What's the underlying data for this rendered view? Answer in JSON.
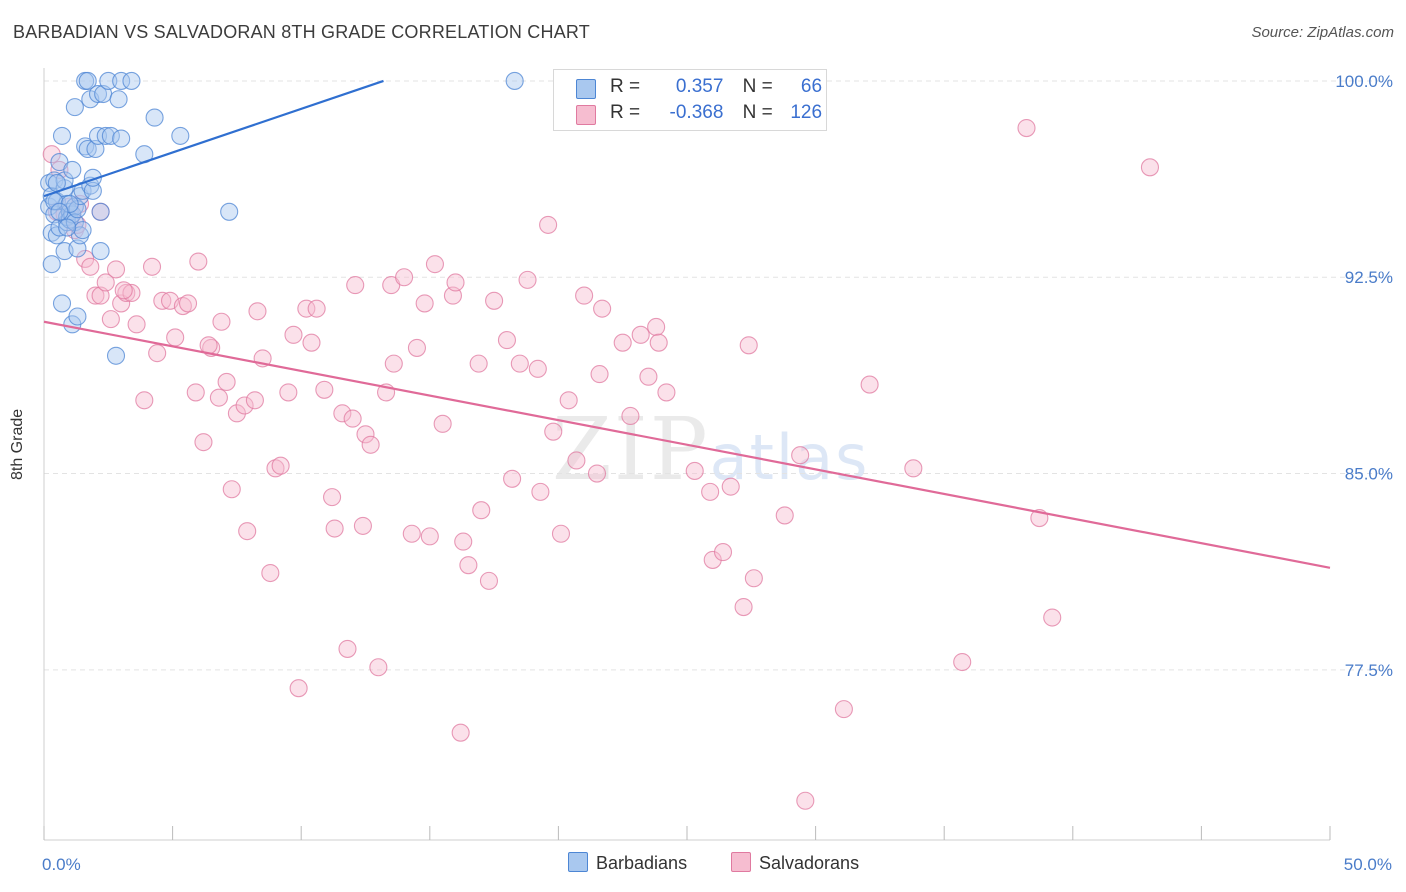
{
  "title": "BARBADIAN VS SALVADORAN 8TH GRADE CORRELATION CHART",
  "source": "Source: ZipAtlas.com",
  "watermark": {
    "zip": "ZIP",
    "atlas": "atlas"
  },
  "legend_top": {
    "rows": [
      {
        "r_label": "R =",
        "r_value": "0.357",
        "n_label": "N =",
        "n_value": "66"
      },
      {
        "r_label": "R =",
        "r_value": "-0.368",
        "n_label": "N =",
        "n_value": "126"
      }
    ]
  },
  "legend_bottom": [
    "Barbadians",
    "Salvadorans"
  ],
  "colors": {
    "blue_fill": "#a9c8ef",
    "blue_stroke": "#4d86d4",
    "blue_line": "#2f6fd0",
    "pink_fill": "#f6bdd0",
    "pink_stroke": "#e07aa0",
    "pink_line": "#e06a98",
    "tick_text": "#4a7cc9",
    "grid": "#e3e3e3"
  },
  "chart_data": {
    "type": "scatter",
    "title": "BARBADIAN VS SALVADORAN 8TH GRADE CORRELATION CHART",
    "xlabel": "",
    "ylabel": "8th Grade",
    "xlim": [
      0,
      50
    ],
    "ylim": [
      71.0,
      100.8
    ],
    "y_ticks": [
      {
        "value": 100.0,
        "label": "100.0%"
      },
      {
        "value": 92.5,
        "label": "92.5%"
      },
      {
        "value": 85.0,
        "label": "85.0%"
      },
      {
        "value": 77.5,
        "label": "77.5%"
      }
    ],
    "x_tick_labels": [
      {
        "value": 0,
        "label": "0.0%"
      },
      {
        "value": 50,
        "label": "50.0%"
      }
    ],
    "grid": "horizontal dashed",
    "legend_position": "top-center",
    "series": [
      {
        "name": "Barbadians",
        "R": 0.357,
        "N": 66,
        "trend": {
          "x1": 0.0,
          "y1": 95.6,
          "x2": 13.2,
          "y2": 100.0
        },
        "points": [
          [
            0.2,
            96.1
          ],
          [
            0.2,
            95.2
          ],
          [
            0.3,
            94.2
          ],
          [
            0.3,
            93.0
          ],
          [
            0.3,
            95.6
          ],
          [
            0.4,
            96.2
          ],
          [
            0.4,
            94.9
          ],
          [
            0.5,
            95.4
          ],
          [
            0.5,
            94.1
          ],
          [
            0.6,
            96.9
          ],
          [
            0.6,
            94.4
          ],
          [
            0.7,
            97.9
          ],
          [
            0.7,
            91.5
          ],
          [
            0.8,
            95.9
          ],
          [
            0.8,
            96.2
          ],
          [
            0.8,
            93.5
          ],
          [
            0.9,
            95.3
          ],
          [
            0.9,
            94.6
          ],
          [
            0.9,
            94.8
          ],
          [
            1.0,
            95.0
          ],
          [
            1.0,
            94.7
          ],
          [
            1.1,
            96.6
          ],
          [
            1.1,
            94.9
          ],
          [
            1.2,
            95.2
          ],
          [
            1.2,
            94.6
          ],
          [
            1.3,
            95.1
          ],
          [
            1.2,
            99.0
          ],
          [
            1.1,
            90.7
          ],
          [
            1.3,
            91.0
          ],
          [
            1.3,
            93.6
          ],
          [
            1.4,
            95.6
          ],
          [
            1.4,
            94.1
          ],
          [
            1.5,
            95.8
          ],
          [
            1.6,
            97.5
          ],
          [
            1.6,
            100.0
          ],
          [
            1.7,
            97.4
          ],
          [
            1.7,
            100.0
          ],
          [
            1.8,
            99.3
          ],
          [
            1.8,
            96.0
          ],
          [
            1.9,
            95.8
          ],
          [
            2.0,
            97.4
          ],
          [
            2.1,
            97.9
          ],
          [
            2.1,
            99.5
          ],
          [
            2.2,
            93.5
          ],
          [
            2.2,
            95.0
          ],
          [
            2.3,
            99.5
          ],
          [
            2.4,
            97.9
          ],
          [
            2.5,
            100.0
          ],
          [
            2.6,
            97.9
          ],
          [
            2.8,
            89.5
          ],
          [
            2.9,
            99.3
          ],
          [
            3.0,
            97.8
          ],
          [
            3.0,
            100.0
          ],
          [
            3.4,
            100.0
          ],
          [
            3.9,
            97.2
          ],
          [
            4.3,
            98.6
          ],
          [
            5.3,
            97.9
          ],
          [
            7.2,
            95.0
          ],
          [
            18.3,
            100.0
          ],
          [
            0.4,
            95.4
          ],
          [
            0.5,
            96.1
          ],
          [
            1.0,
            95.3
          ],
          [
            1.5,
            94.3
          ],
          [
            0.6,
            95.0
          ],
          [
            1.9,
            96.3
          ],
          [
            0.9,
            94.4
          ]
        ]
      },
      {
        "name": "Salvadorans",
        "R": -0.368,
        "N": 126,
        "trend": {
          "x1": 0.0,
          "y1": 90.8,
          "x2": 50.0,
          "y2": 81.4
        },
        "points": [
          [
            0.3,
            97.2
          ],
          [
            0.5,
            95.0
          ],
          [
            0.6,
            96.6
          ],
          [
            0.8,
            94.9
          ],
          [
            1.0,
            95.2
          ],
          [
            1.2,
            94.3
          ],
          [
            1.3,
            94.5
          ],
          [
            1.4,
            95.3
          ],
          [
            1.6,
            93.2
          ],
          [
            1.8,
            92.9
          ],
          [
            2.0,
            91.8
          ],
          [
            2.2,
            91.8
          ],
          [
            2.4,
            92.3
          ],
          [
            2.6,
            90.9
          ],
          [
            2.8,
            92.8
          ],
          [
            3.0,
            91.5
          ],
          [
            3.2,
            91.9
          ],
          [
            3.4,
            91.9
          ],
          [
            3.6,
            90.7
          ],
          [
            3.9,
            87.8
          ],
          [
            4.2,
            92.9
          ],
          [
            4.4,
            89.6
          ],
          [
            4.6,
            91.6
          ],
          [
            4.9,
            91.6
          ],
          [
            5.1,
            90.2
          ],
          [
            5.4,
            91.4
          ],
          [
            5.6,
            91.5
          ],
          [
            5.9,
            88.1
          ],
          [
            6.0,
            93.1
          ],
          [
            6.2,
            86.2
          ],
          [
            6.5,
            89.8
          ],
          [
            6.8,
            87.9
          ],
          [
            6.9,
            90.8
          ],
          [
            7.1,
            88.5
          ],
          [
            7.3,
            84.4
          ],
          [
            7.5,
            87.3
          ],
          [
            7.8,
            87.6
          ],
          [
            7.9,
            82.8
          ],
          [
            8.2,
            87.8
          ],
          [
            8.3,
            91.2
          ],
          [
            8.5,
            89.4
          ],
          [
            8.8,
            81.2
          ],
          [
            9.0,
            85.2
          ],
          [
            9.2,
            85.3
          ],
          [
            9.5,
            88.1
          ],
          [
            9.7,
            90.3
          ],
          [
            9.9,
            76.8
          ],
          [
            10.2,
            91.3
          ],
          [
            10.4,
            90.0
          ],
          [
            10.6,
            91.3
          ],
          [
            10.9,
            88.2
          ],
          [
            11.2,
            84.1
          ],
          [
            11.3,
            82.9
          ],
          [
            11.6,
            87.3
          ],
          [
            11.8,
            78.3
          ],
          [
            12.0,
            87.1
          ],
          [
            12.1,
            92.2
          ],
          [
            12.4,
            83.0
          ],
          [
            12.5,
            86.5
          ],
          [
            12.7,
            86.1
          ],
          [
            13.0,
            77.6
          ],
          [
            13.3,
            88.1
          ],
          [
            13.5,
            92.2
          ],
          [
            13.6,
            89.2
          ],
          [
            14.0,
            92.5
          ],
          [
            14.3,
            82.7
          ],
          [
            14.5,
            89.8
          ],
          [
            14.8,
            91.5
          ],
          [
            15.0,
            82.6
          ],
          [
            15.2,
            93.0
          ],
          [
            15.5,
            86.9
          ],
          [
            15.9,
            91.8
          ],
          [
            16.2,
            75.1
          ],
          [
            16.3,
            82.4
          ],
          [
            16.5,
            81.5
          ],
          [
            16.9,
            89.2
          ],
          [
            17.0,
            83.6
          ],
          [
            17.3,
            80.9
          ],
          [
            17.5,
            91.6
          ],
          [
            18.0,
            90.1
          ],
          [
            18.2,
            84.8
          ],
          [
            18.5,
            89.2
          ],
          [
            18.8,
            92.4
          ],
          [
            19.2,
            89.0
          ],
          [
            19.3,
            84.3
          ],
          [
            19.6,
            94.5
          ],
          [
            19.8,
            86.6
          ],
          [
            20.1,
            82.7
          ],
          [
            20.4,
            87.8
          ],
          [
            20.7,
            85.5
          ],
          [
            21.0,
            91.8
          ],
          [
            21.5,
            85.0
          ],
          [
            21.6,
            88.8
          ],
          [
            21.7,
            91.3
          ],
          [
            22.5,
            90.0
          ],
          [
            22.8,
            87.2
          ],
          [
            23.2,
            90.3
          ],
          [
            23.5,
            88.7
          ],
          [
            23.8,
            90.6
          ],
          [
            23.9,
            90.0
          ],
          [
            24.2,
            88.1
          ],
          [
            25.0,
            100.0
          ],
          [
            25.3,
            85.1
          ],
          [
            25.9,
            84.3
          ],
          [
            26.0,
            81.7
          ],
          [
            26.4,
            82.0
          ],
          [
            26.7,
            84.5
          ],
          [
            27.2,
            79.9
          ],
          [
            27.4,
            89.9
          ],
          [
            27.6,
            81.0
          ],
          [
            28.8,
            83.4
          ],
          [
            29.4,
            85.7
          ],
          [
            29.6,
            72.5
          ],
          [
            31.1,
            76.0
          ],
          [
            32.1,
            88.4
          ],
          [
            33.8,
            85.2
          ],
          [
            35.7,
            77.8
          ],
          [
            38.2,
            98.2
          ],
          [
            38.7,
            83.3
          ],
          [
            39.2,
            79.5
          ],
          [
            43.0,
            96.7
          ],
          [
            2.2,
            95.0
          ],
          [
            3.1,
            92.0
          ],
          [
            1.1,
            94.9
          ],
          [
            16.0,
            92.3
          ],
          [
            6.4,
            89.9
          ]
        ]
      }
    ]
  }
}
